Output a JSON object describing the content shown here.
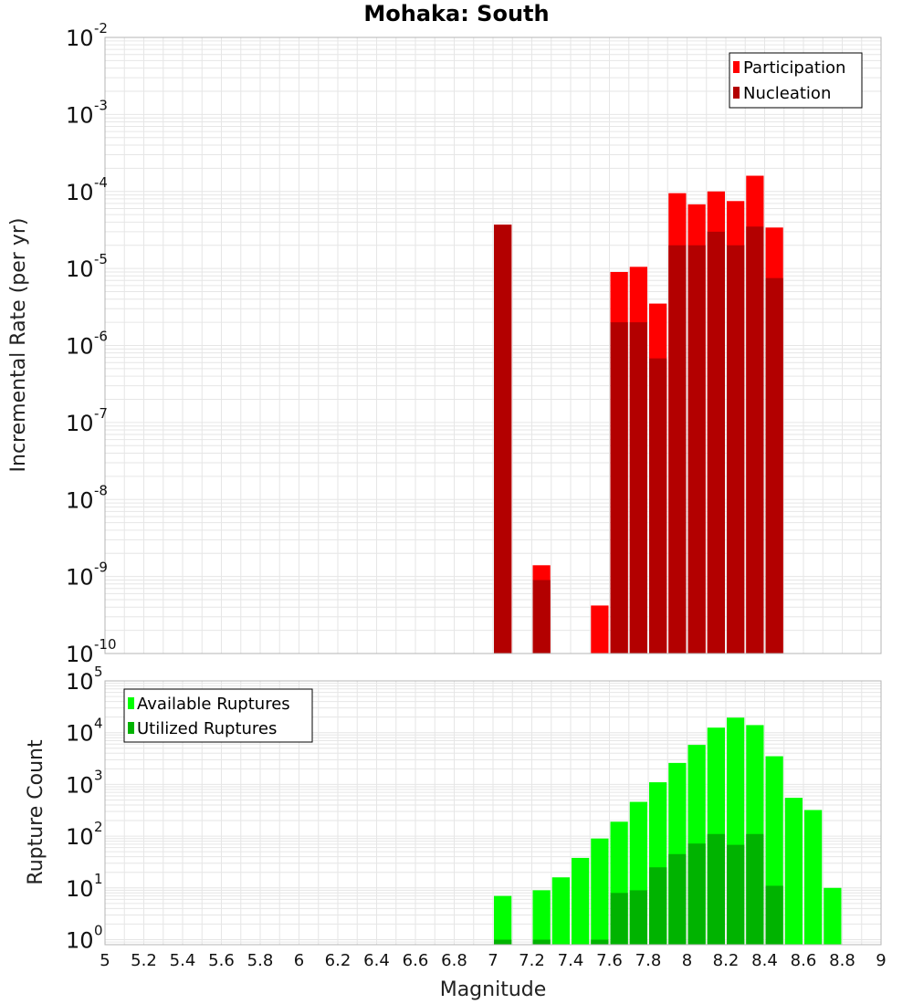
{
  "colors": {
    "participation": "#ff0000",
    "nucleation": "#b30000",
    "available": "#00ff00",
    "utilized": "#00b300",
    "grid": "#e6e6e6",
    "frame": "#b4b4b4"
  },
  "chart_data": [
    {
      "type": "bar",
      "title": "Mohaka: South",
      "xlabel": "",
      "ylabel": "Incremental Rate (per yr)",
      "xscale": "linear",
      "yscale": "log",
      "xlim": [
        5,
        9
      ],
      "ylim": [
        1e-10,
        0.01
      ],
      "ytick_exponents": [
        -10,
        -9,
        -8,
        -7,
        -6,
        -5,
        -4,
        -3,
        -2
      ],
      "ytick_base": "10",
      "grid": true,
      "legend_position": "top-right",
      "bin_width": 0.1,
      "series": [
        {
          "name": "Participation",
          "x": [
            7.05,
            7.25,
            7.55,
            7.65,
            7.75,
            7.85,
            7.95,
            8.05,
            8.15,
            8.25,
            8.35,
            8.45
          ],
          "values": [
            3.7e-05,
            1.4e-09,
            4.2e-10,
            9e-06,
            1.05e-05,
            3.5e-06,
            9.5e-05,
            6.8e-05,
            0.0001,
            7.5e-05,
            0.00016,
            3.4e-05
          ]
        },
        {
          "name": "Nucleation",
          "x": [
            7.05,
            7.25,
            7.65,
            7.75,
            7.85,
            7.95,
            8.05,
            8.15,
            8.25,
            8.35,
            8.45
          ],
          "values": [
            3.7e-05,
            9e-10,
            2e-06,
            2e-06,
            6.8e-07,
            2e-05,
            2e-05,
            3e-05,
            2e-05,
            3.5e-05,
            7.5e-06
          ]
        }
      ]
    },
    {
      "type": "bar",
      "title": "",
      "xlabel": "Magnitude",
      "ylabel": "Rupture Count",
      "xscale": "linear",
      "yscale": "log",
      "xlim": [
        5,
        9
      ],
      "ylim": [
        0.8,
        100000
      ],
      "ytick_exponents": [
        0,
        1,
        2,
        3,
        4,
        5
      ],
      "ytick_base": "10",
      "xticks": [
        "5",
        "5.2",
        "5.4",
        "5.6",
        "5.8",
        "6",
        "6.2",
        "6.4",
        "6.6",
        "6.8",
        "7",
        "7.2",
        "7.4",
        "7.6",
        "7.8",
        "8",
        "8.2",
        "8.4",
        "8.6",
        "8.8",
        "9"
      ],
      "grid": true,
      "legend_position": "top-left",
      "bin_width": 0.1,
      "series": [
        {
          "name": "Available Ruptures",
          "x": [
            7.05,
            7.25,
            7.35,
            7.45,
            7.55,
            7.65,
            7.75,
            7.85,
            7.95,
            8.05,
            8.15,
            8.25,
            8.35,
            8.45,
            8.55,
            8.65,
            8.75
          ],
          "values": [
            7,
            9,
            16,
            38,
            90,
            190,
            460,
            1100,
            2600,
            5800,
            12500,
            19500,
            14000,
            3500,
            550,
            320,
            10
          ]
        },
        {
          "name": "Utilized Ruptures",
          "x": [
            7.05,
            7.25,
            7.55,
            7.65,
            7.75,
            7.85,
            7.95,
            8.05,
            8.15,
            8.25,
            8.35,
            8.45
          ],
          "values": [
            1,
            1,
            1,
            8,
            9,
            25,
            45,
            72,
            110,
            68,
            110,
            11
          ]
        }
      ]
    }
  ]
}
